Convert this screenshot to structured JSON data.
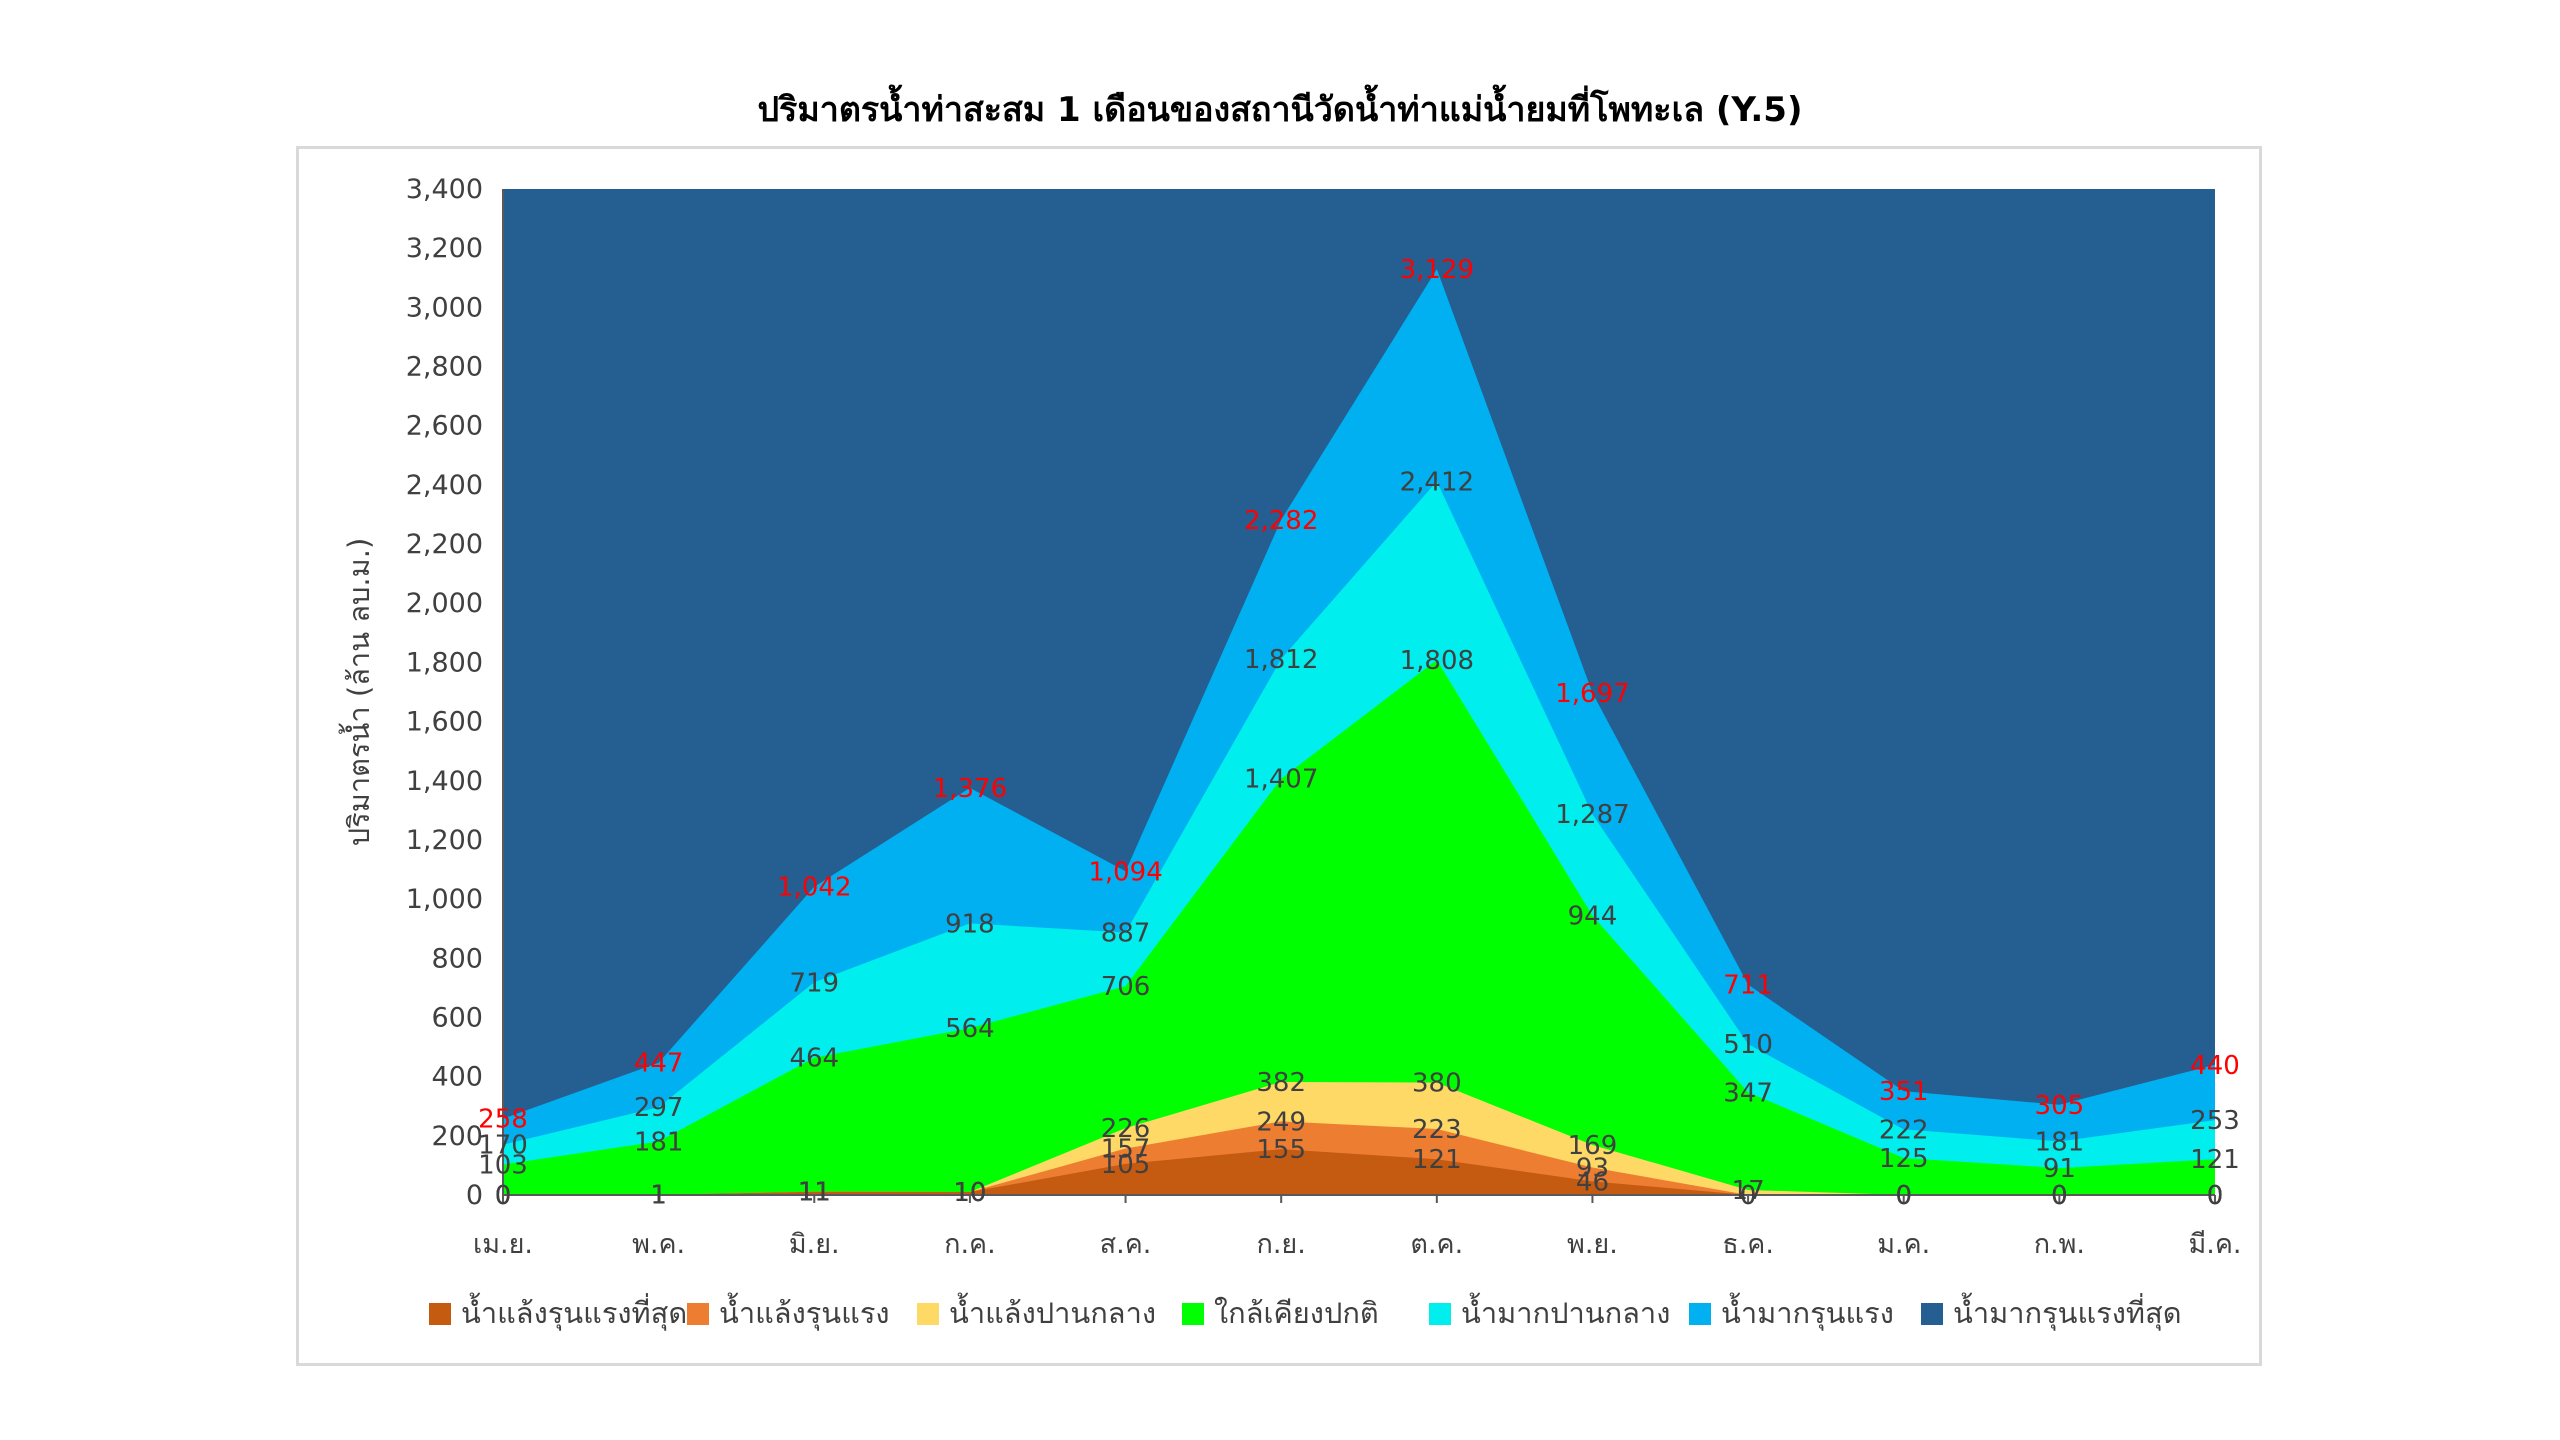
{
  "chart_data": {
    "type": "area",
    "title": "ปริมาตรน้ำท่าสะสม 1 เดือนของสถานีวัดน้ำท่าแม่น้ำยมที่โพทะเล (Y.5)",
    "ylabel": "ปริมาตรน้ำ (ล้าน ลบ.ม.)",
    "xlabel": "",
    "ylim": [
      0,
      3400
    ],
    "ytick_step": 200,
    "yticks": [
      "0",
      "200",
      "400",
      "600",
      "800",
      "1,000",
      "1,200",
      "1,400",
      "1,600",
      "1,800",
      "2,000",
      "2,200",
      "2,400",
      "2,600",
      "2,800",
      "3,000",
      "3,200",
      "3,400"
    ],
    "grid": false,
    "legend": "bottom",
    "categories": [
      "เม.ย.",
      "พ.ค.",
      "มิ.ย.",
      "ก.ค.",
      "ส.ค.",
      "ก.ย.",
      "ต.ค.",
      "พ.ย.",
      "ธ.ค.",
      "ม.ค.",
      "ก.พ.",
      "มี.ค."
    ],
    "series": [
      {
        "name": "น้ำแล้งรุนแรงที่สุด",
        "color": "#c55a11",
        "label_color": "#404040",
        "values": [
          0,
          1,
          11,
          10,
          105,
          155,
          121,
          46,
          0,
          0,
          0,
          0
        ],
        "labels": [
          "0",
          "1",
          "11",
          "10",
          "105",
          "155",
          "121",
          "46",
          "0",
          "0",
          "0",
          "0"
        ]
      },
      {
        "name": "น้ำแล้งรุนแรง",
        "color": "#ed7d31",
        "label_color": "#404040",
        "values": [
          0,
          1,
          11,
          10,
          157,
          249,
          223,
          93,
          0,
          0,
          0,
          0
        ],
        "labels": [
          "0",
          "1",
          "11",
          "10",
          "157",
          "249",
          "223",
          "93",
          "0",
          "0",
          "0",
          "0"
        ]
      },
      {
        "name": "น้ำแล้งปานกลาง",
        "color": "#ffd966",
        "label_color": "#404040",
        "values": [
          0,
          1,
          11,
          10,
          226,
          382,
          380,
          169,
          17,
          0,
          0,
          0
        ],
        "labels": [
          "0",
          "1",
          "11",
          "10",
          "226",
          "382",
          "380",
          "169",
          "17",
          "0",
          "0",
          "0"
        ]
      },
      {
        "name": "ใกล้เคียงปกติ",
        "color": "#00ff00",
        "label_color": "#404040",
        "values": [
          103,
          181,
          464,
          564,
          706,
          1407,
          1808,
          944,
          347,
          125,
          91,
          121
        ],
        "labels": [
          "103",
          "181",
          "464",
          "564",
          "706",
          "1,407",
          "1,808",
          "944",
          "347",
          "125",
          "91",
          "121"
        ]
      },
      {
        "name": "น้ำมากปานกลาง",
        "color": "#00eeee",
        "label_color": "#404040",
        "values": [
          170,
          297,
          719,
          918,
          887,
          1812,
          2412,
          1287,
          510,
          222,
          181,
          253
        ],
        "labels": [
          "170",
          "297",
          "719",
          "918",
          "887",
          "1,812",
          "2,412",
          "1,287",
          "510",
          "222",
          "181",
          "253"
        ]
      },
      {
        "name": "น้ำมากรุนแรง",
        "color": "#00b0f0",
        "label_color": "#ff0000",
        "values": [
          258,
          447,
          1042,
          1376,
          1094,
          2282,
          3129,
          1697,
          711,
          351,
          305,
          440
        ],
        "labels": [
          "258",
          "447",
          "1,042",
          "1,376",
          "1,094",
          "2,282",
          "3,129",
          "1,697",
          "711",
          "351",
          "305",
          "440"
        ]
      },
      {
        "name": "น้ำมากรุนแรงที่สุด",
        "color": "#255e91",
        "label_color": "#404040",
        "values": [
          3400,
          3400,
          3400,
          3400,
          3400,
          3400,
          3400,
          3400,
          3400,
          3400,
          3400,
          3400
        ],
        "labels": []
      }
    ]
  }
}
